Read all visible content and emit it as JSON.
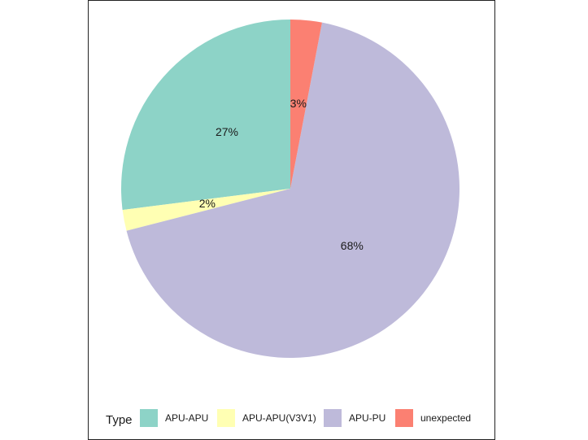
{
  "chart_data": {
    "type": "pie",
    "legend": {
      "title": "Type",
      "placement": "bottom"
    },
    "slices": [
      {
        "label": "APU-APU",
        "value": 27,
        "display": "27%",
        "color": "#8dd3c7"
      },
      {
        "label": "APU-APU(V3V1)",
        "value": 2,
        "display": "2%",
        "color": "#ffffb3"
      },
      {
        "label": "APU-PU",
        "value": 68,
        "display": "68%",
        "color": "#bebada"
      },
      {
        "label": "unexpected",
        "value": 3,
        "display": "3%",
        "color": "#fb8072"
      }
    ],
    "start": "12 o'clock",
    "direction": "counterclockwise"
  }
}
